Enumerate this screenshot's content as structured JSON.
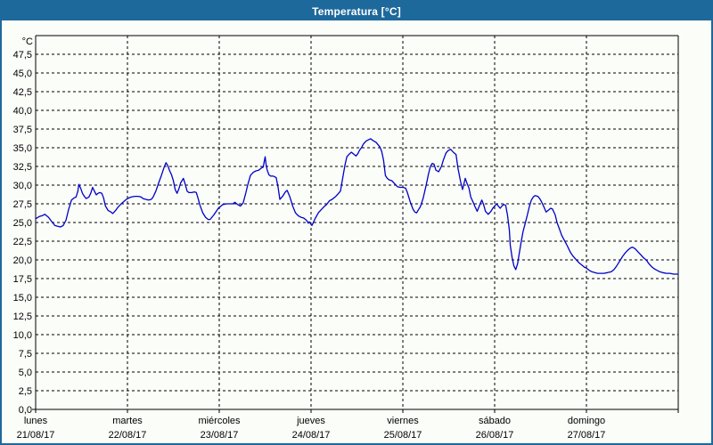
{
  "window": {
    "title": "Temperatura [°C]"
  },
  "colors": {
    "titlebar_bg": "#1e699c",
    "titlebar_text": "#ffffff",
    "window_border": "#1e699c",
    "background": "#fbfdf9",
    "grid": "#000000",
    "frame": "#000000",
    "line": "#0000c8",
    "text": "#000000"
  },
  "chart_data": {
    "type": "line",
    "title": "Temperatura [°C]",
    "y_unit": "°C",
    "ylim": [
      0,
      50
    ],
    "y_tick_step": 2.5,
    "grid": "dashed",
    "legend": "none",
    "y_tick_values": [
      47.5,
      45.0,
      42.5,
      40.0,
      37.5,
      35.0,
      32.5,
      30.0,
      27.5,
      25.0,
      22.5,
      20.0,
      17.5,
      15.0,
      12.5,
      10.0,
      7.5,
      5.0,
      2.5,
      0.0
    ],
    "y_tick_labels": [
      "47,5",
      "45,0",
      "42,5",
      "40,0",
      "37,5",
      "35,0",
      "32,5",
      "30,0",
      "27,5",
      "25,0",
      "22,5",
      "20,0",
      "17,5",
      "15,0",
      "12,5",
      "10,0",
      "7,5",
      "5,0",
      "2,5",
      "0,0"
    ],
    "x_days": [
      {
        "name": "lunes",
        "date": "21/08/17"
      },
      {
        "name": "martes",
        "date": "22/08/17"
      },
      {
        "name": "miércoles",
        "date": "23/08/17"
      },
      {
        "name": "jueves",
        "date": "24/08/17"
      },
      {
        "name": "viernes",
        "date": "25/08/17"
      },
      {
        "name": "sábado",
        "date": "26/08/17"
      },
      {
        "name": "domingo",
        "date": "27/08/17"
      }
    ],
    "series": [
      {
        "name": "Temperatura",
        "color": "#0000c8",
        "points": [
          [
            0.0,
            25.5
          ],
          [
            0.04,
            25.8
          ],
          [
            0.07,
            25.9
          ],
          [
            0.1,
            26.1
          ],
          [
            0.14,
            25.7
          ],
          [
            0.17,
            25.2
          ],
          [
            0.21,
            24.6
          ],
          [
            0.24,
            24.5
          ],
          [
            0.27,
            24.4
          ],
          [
            0.3,
            24.6
          ],
          [
            0.33,
            25.3
          ],
          [
            0.36,
            26.8
          ],
          [
            0.39,
            28.0
          ],
          [
            0.42,
            28.3
          ],
          [
            0.44,
            28.4
          ],
          [
            0.46,
            29.2
          ],
          [
            0.47,
            30.1
          ],
          [
            0.49,
            29.6
          ],
          [
            0.51,
            28.9
          ],
          [
            0.53,
            28.5
          ],
          [
            0.55,
            28.2
          ],
          [
            0.58,
            28.4
          ],
          [
            0.6,
            28.9
          ],
          [
            0.62,
            29.7
          ],
          [
            0.64,
            29.2
          ],
          [
            0.66,
            28.7
          ],
          [
            0.68,
            28.9
          ],
          [
            0.7,
            29.0
          ],
          [
            0.72,
            28.9
          ],
          [
            0.74,
            28.3
          ],
          [
            0.76,
            27.2
          ],
          [
            0.79,
            26.6
          ],
          [
            0.82,
            26.4
          ],
          [
            0.84,
            26.2
          ],
          [
            0.87,
            26.6
          ],
          [
            0.9,
            27.1
          ],
          [
            0.94,
            27.6
          ],
          [
            0.97,
            27.9
          ],
          [
            1.0,
            28.2
          ],
          [
            1.04,
            28.4
          ],
          [
            1.08,
            28.5
          ],
          [
            1.12,
            28.5
          ],
          [
            1.15,
            28.4
          ],
          [
            1.17,
            28.2
          ],
          [
            1.2,
            28.1
          ],
          [
            1.23,
            28.0
          ],
          [
            1.26,
            28.1
          ],
          [
            1.28,
            28.4
          ],
          [
            1.31,
            29.2
          ],
          [
            1.34,
            30.3
          ],
          [
            1.37,
            31.3
          ],
          [
            1.4,
            32.4
          ],
          [
            1.42,
            33.0
          ],
          [
            1.44,
            32.6
          ],
          [
            1.46,
            31.9
          ],
          [
            1.48,
            31.4
          ],
          [
            1.5,
            30.6
          ],
          [
            1.52,
            29.4
          ],
          [
            1.54,
            28.9
          ],
          [
            1.56,
            29.5
          ],
          [
            1.58,
            30.3
          ],
          [
            1.61,
            30.9
          ],
          [
            1.63,
            30.1
          ],
          [
            1.65,
            29.2
          ],
          [
            1.67,
            29.0
          ],
          [
            1.7,
            29.0
          ],
          [
            1.73,
            29.1
          ],
          [
            1.75,
            29.0
          ],
          [
            1.77,
            28.2
          ],
          [
            1.79,
            27.3
          ],
          [
            1.82,
            26.3
          ],
          [
            1.85,
            25.7
          ],
          [
            1.88,
            25.4
          ],
          [
            1.9,
            25.4
          ],
          [
            1.94,
            26.0
          ],
          [
            1.99,
            26.9
          ],
          [
            2.04,
            27.4
          ],
          [
            2.08,
            27.5
          ],
          [
            2.12,
            27.5
          ],
          [
            2.15,
            27.5
          ],
          [
            2.17,
            27.7
          ],
          [
            2.2,
            27.4
          ],
          [
            2.23,
            27.2
          ],
          [
            2.26,
            27.6
          ],
          [
            2.29,
            29.0
          ],
          [
            2.31,
            30.0
          ],
          [
            2.34,
            31.3
          ],
          [
            2.37,
            31.7
          ],
          [
            2.4,
            31.9
          ],
          [
            2.43,
            32.0
          ],
          [
            2.46,
            32.3
          ],
          [
            2.48,
            32.4
          ],
          [
            2.49,
            33.2
          ],
          [
            2.5,
            33.8
          ],
          [
            2.51,
            32.8
          ],
          [
            2.52,
            32.1
          ],
          [
            2.54,
            31.4
          ],
          [
            2.56,
            31.2
          ],
          [
            2.59,
            31.2
          ],
          [
            2.62,
            31.0
          ],
          [
            2.64,
            29.8
          ],
          [
            2.66,
            28.1
          ],
          [
            2.69,
            28.5
          ],
          [
            2.72,
            29.1
          ],
          [
            2.74,
            29.3
          ],
          [
            2.77,
            28.4
          ],
          [
            2.8,
            27.2
          ],
          [
            2.83,
            26.3
          ],
          [
            2.86,
            25.9
          ],
          [
            2.89,
            25.7
          ],
          [
            2.92,
            25.6
          ],
          [
            2.95,
            25.3
          ],
          [
            2.97,
            24.9
          ],
          [
            2.98,
            25.1
          ],
          [
            3.01,
            24.6
          ],
          [
            3.04,
            25.4
          ],
          [
            3.08,
            26.3
          ],
          [
            3.11,
            26.7
          ],
          [
            3.14,
            27.1
          ],
          [
            3.17,
            27.4
          ],
          [
            3.2,
            27.9
          ],
          [
            3.23,
            28.1
          ],
          [
            3.27,
            28.5
          ],
          [
            3.3,
            28.9
          ],
          [
            3.32,
            29.2
          ],
          [
            3.34,
            30.6
          ],
          [
            3.37,
            32.7
          ],
          [
            3.39,
            33.8
          ],
          [
            3.42,
            34.2
          ],
          [
            3.44,
            34.4
          ],
          [
            3.47,
            34.1
          ],
          [
            3.49,
            33.9
          ],
          [
            3.51,
            34.2
          ],
          [
            3.53,
            34.7
          ],
          [
            3.55,
            35.0
          ],
          [
            3.57,
            35.5
          ],
          [
            3.6,
            35.9
          ],
          [
            3.63,
            36.1
          ],
          [
            3.65,
            36.2
          ],
          [
            3.67,
            36.0
          ],
          [
            3.71,
            35.7
          ],
          [
            3.75,
            35.1
          ],
          [
            3.77,
            34.5
          ],
          [
            3.79,
            33.3
          ],
          [
            3.81,
            31.3
          ],
          [
            3.83,
            30.9
          ],
          [
            3.85,
            30.7
          ],
          [
            3.88,
            30.6
          ],
          [
            3.91,
            30.2
          ],
          [
            3.94,
            29.8
          ],
          [
            3.97,
            29.7
          ],
          [
            4.0,
            29.7
          ],
          [
            4.03,
            29.6
          ],
          [
            4.05,
            29.0
          ],
          [
            4.08,
            27.8
          ],
          [
            4.11,
            26.8
          ],
          [
            4.13,
            26.4
          ],
          [
            4.15,
            26.3
          ],
          [
            4.17,
            26.7
          ],
          [
            4.19,
            27.1
          ],
          [
            4.22,
            28.2
          ],
          [
            4.25,
            29.8
          ],
          [
            4.28,
            31.5
          ],
          [
            4.3,
            32.5
          ],
          [
            4.32,
            32.9
          ],
          [
            4.34,
            32.8
          ],
          [
            4.36,
            32.0
          ],
          [
            4.39,
            31.8
          ],
          [
            4.42,
            32.5
          ],
          [
            4.44,
            33.3
          ],
          [
            4.47,
            34.3
          ],
          [
            4.49,
            34.6
          ],
          [
            4.52,
            34.8
          ],
          [
            4.55,
            34.4
          ],
          [
            4.58,
            34.1
          ],
          [
            4.6,
            32.3
          ],
          [
            4.63,
            30.4
          ],
          [
            4.65,
            29.4
          ],
          [
            4.68,
            30.9
          ],
          [
            4.7,
            30.2
          ],
          [
            4.72,
            29.6
          ],
          [
            4.74,
            28.4
          ],
          [
            4.77,
            27.6
          ],
          [
            4.79,
            27.0
          ],
          [
            4.81,
            26.5
          ],
          [
            4.84,
            27.4
          ],
          [
            4.86,
            28.0
          ],
          [
            4.88,
            27.4
          ],
          [
            4.9,
            26.5
          ],
          [
            4.93,
            26.1
          ],
          [
            4.96,
            26.5
          ],
          [
            4.98,
            26.9
          ],
          [
            5.0,
            27.2
          ],
          [
            5.02,
            27.5
          ],
          [
            5.04,
            27.2
          ],
          [
            5.06,
            26.9
          ],
          [
            5.08,
            27.2
          ],
          [
            5.1,
            27.4
          ],
          [
            5.12,
            27.3
          ],
          [
            5.14,
            26.0
          ],
          [
            5.16,
            24.0
          ],
          [
            5.17,
            22.0
          ],
          [
            5.19,
            20.3
          ],
          [
            5.21,
            19.2
          ],
          [
            5.23,
            18.7
          ],
          [
            5.25,
            19.5
          ],
          [
            5.27,
            21.0
          ],
          [
            5.29,
            22.5
          ],
          [
            5.31,
            23.8
          ],
          [
            5.34,
            25.2
          ],
          [
            5.36,
            26.2
          ],
          [
            5.38,
            27.2
          ],
          [
            5.4,
            28.0
          ],
          [
            5.42,
            28.4
          ],
          [
            5.44,
            28.6
          ],
          [
            5.47,
            28.5
          ],
          [
            5.49,
            28.2
          ],
          [
            5.51,
            27.8
          ],
          [
            5.54,
            27.0
          ],
          [
            5.56,
            26.4
          ],
          [
            5.59,
            26.7
          ],
          [
            5.61,
            26.9
          ],
          [
            5.63,
            26.8
          ],
          [
            5.66,
            26.0
          ],
          [
            5.68,
            25.0
          ],
          [
            5.71,
            24.0
          ],
          [
            5.73,
            23.3
          ],
          [
            5.76,
            22.6
          ],
          [
            5.79,
            21.9
          ],
          [
            5.81,
            21.4
          ],
          [
            5.83,
            20.9
          ],
          [
            5.86,
            20.4
          ],
          [
            5.89,
            20.0
          ],
          [
            5.92,
            19.6
          ],
          [
            5.95,
            19.3
          ],
          [
            5.98,
            19.0
          ],
          [
            6.0,
            18.9
          ],
          [
            6.03,
            18.6
          ],
          [
            6.06,
            18.4
          ],
          [
            6.09,
            18.3
          ],
          [
            6.12,
            18.2
          ],
          [
            6.16,
            18.2
          ],
          [
            6.19,
            18.2
          ],
          [
            6.23,
            18.3
          ],
          [
            6.27,
            18.4
          ],
          [
            6.3,
            18.7
          ],
          [
            6.33,
            19.2
          ],
          [
            6.36,
            19.8
          ],
          [
            6.39,
            20.4
          ],
          [
            6.42,
            20.9
          ],
          [
            6.45,
            21.3
          ],
          [
            6.48,
            21.6
          ],
          [
            6.5,
            21.7
          ],
          [
            6.53,
            21.5
          ],
          [
            6.56,
            21.1
          ],
          [
            6.59,
            20.7
          ],
          [
            6.62,
            20.3
          ],
          [
            6.65,
            20.0
          ],
          [
            6.68,
            19.5
          ],
          [
            6.71,
            19.1
          ],
          [
            6.74,
            18.8
          ],
          [
            6.77,
            18.6
          ],
          [
            6.8,
            18.4
          ],
          [
            6.83,
            18.3
          ],
          [
            6.87,
            18.2
          ],
          [
            6.91,
            18.2
          ],
          [
            6.95,
            18.1
          ],
          [
            7.0,
            18.1
          ]
        ]
      }
    ]
  }
}
